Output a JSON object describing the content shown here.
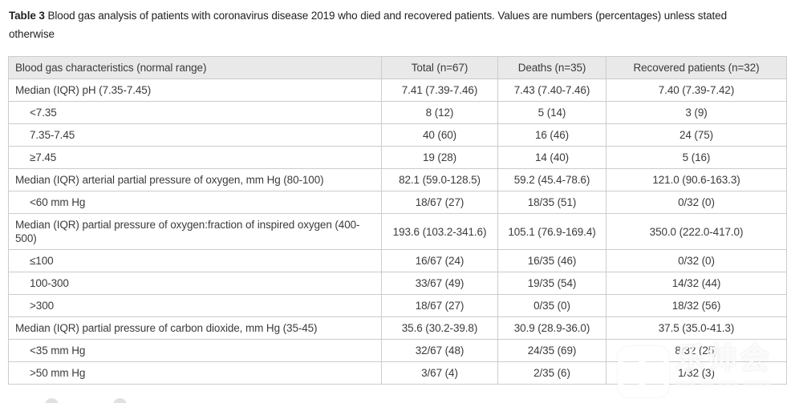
{
  "caption": {
    "label": "Table 3",
    "text": " Blood gas analysis of patients with coronavirus disease 2019 who died and recovered patients. Values are numbers (percentages) unless stated otherwise"
  },
  "table": {
    "columns": [
      "Blood gas characteristics (normal range)",
      "Total (n=67)",
      "Deaths (n=35)",
      "Recovered patients (n=32)"
    ],
    "rows": [
      {
        "label": "Median (IQR) pH (7.35-7.45)",
        "indent": false,
        "values": [
          "7.41 (7.39-7.46)",
          "7.43 (7.40-7.46)",
          "7.40 (7.39-7.42)"
        ]
      },
      {
        "label": "<7.35",
        "indent": true,
        "values": [
          "8 (12)",
          "5 (14)",
          "3 (9)"
        ]
      },
      {
        "label": "7.35-7.45",
        "indent": true,
        "values": [
          "40 (60)",
          "16 (46)",
          "24 (75)"
        ]
      },
      {
        "label": "≥7.45",
        "indent": true,
        "values": [
          "19 (28)",
          "14 (40)",
          "5 (16)"
        ]
      },
      {
        "label": "Median (IQR) arterial partial pressure of oxygen, mm Hg (80-100)",
        "indent": false,
        "values": [
          "82.1 (59.0-128.5)",
          "59.2 (45.4-78.6)",
          "121.0 (90.6-163.3)"
        ]
      },
      {
        "label": "<60 mm Hg",
        "indent": true,
        "values": [
          "18/67 (27)",
          "18/35 (51)",
          "0/32 (0)"
        ]
      },
      {
        "label": "Median (IQR) partial pressure of oxygen:fraction of inspired oxygen (400-500)",
        "indent": false,
        "values": [
          "193.6 (103.2-341.6)",
          "105.1 (76.9-169.4)",
          "350.0 (222.0-417.0)"
        ]
      },
      {
        "label": "≤100",
        "indent": true,
        "values": [
          "16/67 (24)",
          "16/35 (46)",
          "0/32 (0)"
        ]
      },
      {
        "label": "100-300",
        "indent": true,
        "values": [
          "33/67 (49)",
          "19/35 (54)",
          "14/32 (44)"
        ]
      },
      {
        "label": ">300",
        "indent": true,
        "values": [
          "18/67 (27)",
          "0/35 (0)",
          "18/32 (56)"
        ]
      },
      {
        "label": "Median (IQR) partial pressure of carbon dioxide, mm Hg (35-45)",
        "indent": false,
        "values": [
          "35.6 (30.2-39.8)",
          "30.9 (28.9-36.0)",
          "37.5 (35.0-41.3)"
        ]
      },
      {
        "label": "<35 mm Hg",
        "indent": true,
        "values": [
          "32/67 (48)",
          "24/35 (69)",
          "8/32 (25)"
        ]
      },
      {
        "label": ">50 mm Hg",
        "indent": true,
        "values": [
          "3/67 (4)",
          "2/35 (6)",
          "1/32 (3)"
        ]
      }
    ]
  },
  "watermark": {
    "chars": "乐帅会",
    "subtext": "▂▂▂ ▂▂ ▂▂▂ ▂▂▂▂"
  },
  "colors": {
    "header_bg": "#e9e9e9",
    "border": "#cccccc",
    "text": "#3b3b3b"
  }
}
